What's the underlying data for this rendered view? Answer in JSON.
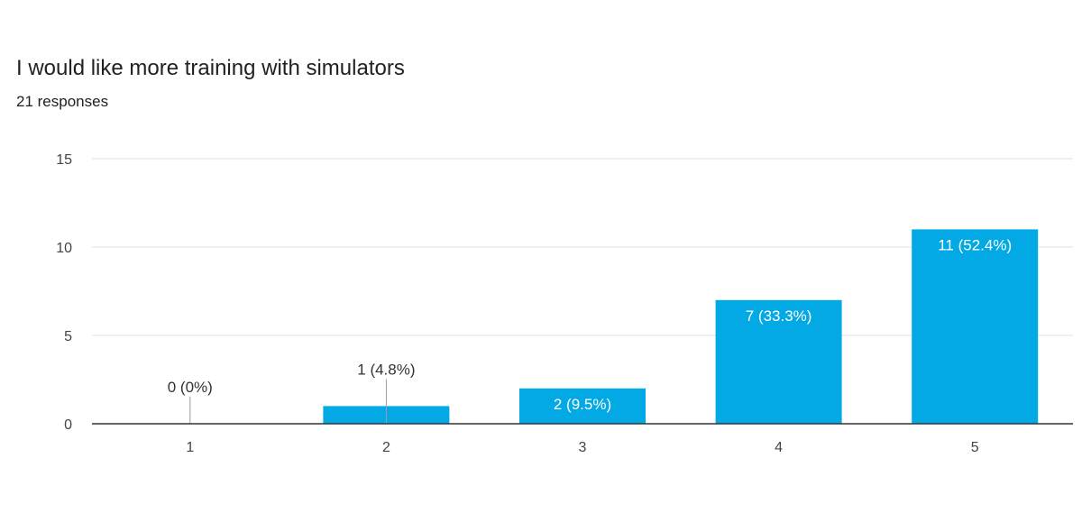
{
  "chart_data": {
    "type": "bar",
    "title": "I would like more training with simulators",
    "subtitle": "21 responses",
    "categories": [
      "1",
      "2",
      "3",
      "4",
      "5"
    ],
    "values": [
      0,
      1,
      2,
      7,
      11
    ],
    "data_labels": [
      "0 (0%)",
      "1 (4.8%)",
      "2 (9.5%)",
      "7 (33.3%)",
      "11 (52.4%)"
    ],
    "xlabel": "",
    "ylabel": "",
    "ylim": [
      0,
      15
    ],
    "yticks": [
      0,
      5,
      10,
      15
    ],
    "grid": true,
    "colors": {
      "bar": "#03a9e4",
      "grid": "#e0e0e0",
      "axis": "#333333",
      "label_inside": "#ffffff",
      "label_outside": "#333333"
    }
  }
}
